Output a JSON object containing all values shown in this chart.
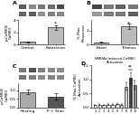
{
  "panel_A": {
    "label": "A",
    "blot_rows": 2,
    "blot_cols": 5,
    "bar_categories": [
      "Control",
      "Potassium"
    ],
    "bar_values": [
      0.4,
      2.8
    ],
    "bar_errors": [
      0.08,
      0.35
    ],
    "bar_colors": [
      "#aaaaaa",
      "#bbbbbb"
    ],
    "ylabel": "p-CaMKII/\nCaMKII",
    "significance": "*",
    "ylim": [
      0,
      4.0
    ]
  },
  "panel_B": {
    "label": "B",
    "blot_rows": 2,
    "blot_cols": 4,
    "bar_categories": [
      "Basal",
      "Tetanus"
    ],
    "bar_values": [
      0.3,
      2.6
    ],
    "bar_errors": [
      0.05,
      0.4
    ],
    "bar_colors": [
      "#aaaaaa",
      "#bbbbbb"
    ],
    "ylabel": "% Max\nResponse",
    "significance": "*",
    "ylim": [
      0,
      3.5
    ]
  },
  "panel_C": {
    "label": "C",
    "blot_rows": 2,
    "blot_cols": 5,
    "bar_categories": [
      "Resting",
      "P + Stim"
    ],
    "bar_values": [
      0.9,
      0.65
    ],
    "bar_errors": [
      0.12,
      0.18
    ],
    "bar_colors": [
      "#aaaaaa",
      "#555555"
    ],
    "ylabel": "p-CaMKII/\nCaMKII",
    "significance": "",
    "ylim": [
      0,
      1.4
    ]
  },
  "panel_D": {
    "label": "D",
    "n_bars": 10,
    "bar_values": [
      0.08,
      0.1,
      0.09,
      0.11,
      0.1,
      0.12,
      0.11,
      0.75,
      1.05,
      0.8
    ],
    "bar_errors": [
      0.02,
      0.02,
      0.02,
      0.02,
      0.02,
      0.03,
      0.03,
      0.15,
      0.2,
      0.16
    ],
    "bar_colors": [
      "#ffffff",
      "#ffffff",
      "#ffffff",
      "#ffffff",
      "#ffffff",
      "#ffffff",
      "#ffffff",
      "#cccccc",
      "#444444",
      "#888888"
    ],
    "ylabel": "% Max CaMKII\nActivation",
    "ylim": [
      0,
      1.5
    ],
    "title": "NMDAr-Induced CaMKII\nActivation"
  },
  "bg_color": "#ffffff",
  "label_fontsize": 4.5,
  "tick_fontsize": 3.2,
  "ylabel_fontsize": 3.0,
  "bar_linewidth": 0.4,
  "spine_linewidth": 0.4
}
